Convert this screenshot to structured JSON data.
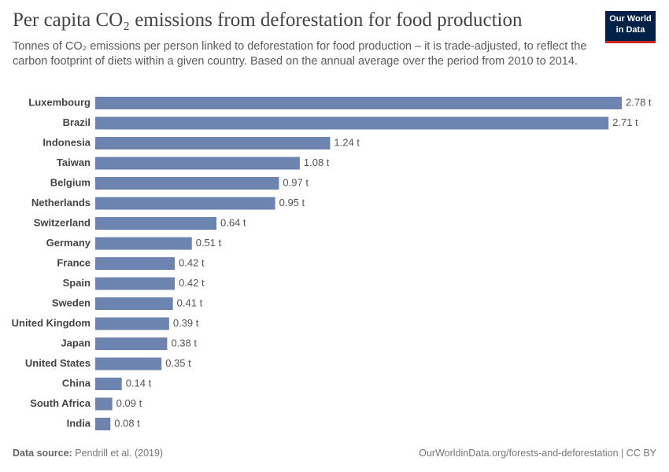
{
  "chart_data": {
    "type": "bar",
    "orientation": "horizontal",
    "title": "Per capita CO₂ emissions from deforestation for food production",
    "subtitle": "Tonnes of CO₂ emissions per person linked to deforestation for food production – it is trade-adjusted, to reflect the carbon footprint of diets within a given country. Based on the annual average over the period from 2010 to 2014.",
    "logo": [
      "Our World",
      "in Data"
    ],
    "categories": [
      "Luxembourg",
      "Brazil",
      "Indonesia",
      "Taiwan",
      "Belgium",
      "Netherlands",
      "Switzerland",
      "Germany",
      "France",
      "Spain",
      "Sweden",
      "United Kingdom",
      "Japan",
      "United States",
      "China",
      "South Africa",
      "India"
    ],
    "values": [
      2.78,
      2.71,
      1.24,
      1.08,
      0.97,
      0.95,
      0.64,
      0.51,
      0.42,
      0.42,
      0.41,
      0.39,
      0.38,
      0.35,
      0.14,
      0.09,
      0.08
    ],
    "value_labels": [
      "2.78 t",
      "2.71 t",
      "1.24 t",
      "1.08 t",
      "0.97 t",
      "0.95 t",
      "0.64 t",
      "0.51 t",
      "0.42 t",
      "0.42 t",
      "0.41 t",
      "0.39 t",
      "0.38 t",
      "0.35 t",
      "0.14 t",
      "0.09 t",
      "0.08 t"
    ],
    "color": "#6d83b0",
    "source": {
      "label": "Data source:",
      "text": "Pendrill et al. (2019)"
    },
    "footer": "OurWorldinData.org/forests-and-deforestation | CC BY"
  }
}
